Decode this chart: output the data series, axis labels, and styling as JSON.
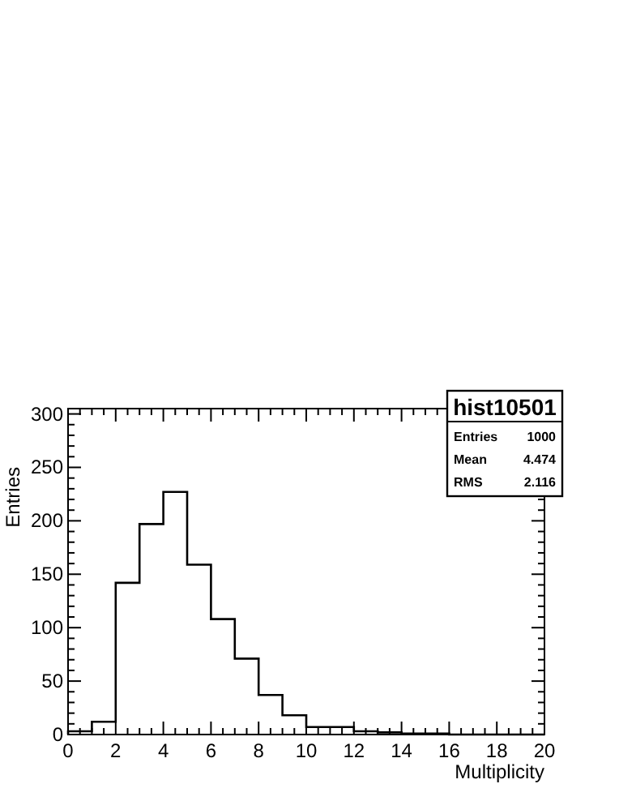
{
  "chart_data": {
    "type": "histogram",
    "title": "hist10501",
    "xlabel": "Multiplicity",
    "ylabel": "Entries",
    "bins": [
      0,
      1,
      2,
      3,
      4,
      5,
      6,
      7,
      8,
      9,
      10,
      11,
      12,
      13,
      14,
      15,
      16,
      17,
      18,
      19,
      20
    ],
    "values": [
      3,
      12,
      142,
      197,
      227,
      159,
      108,
      71,
      37,
      18,
      7,
      7,
      3,
      2,
      1,
      1,
      0,
      0,
      0,
      0
    ],
    "color": "#000000",
    "xlim": [
      0,
      20
    ],
    "xticks": [
      0,
      2,
      4,
      6,
      8,
      10,
      12,
      14,
      16,
      18,
      20
    ],
    "ylim": [
      0,
      305
    ],
    "yticks": [
      0,
      50,
      100,
      150,
      200,
      250,
      300
    ],
    "annotations": [
      "Entries 1000",
      "Mean 4.474",
      "RMS 2.116"
    ],
    "grid": false
  }
}
